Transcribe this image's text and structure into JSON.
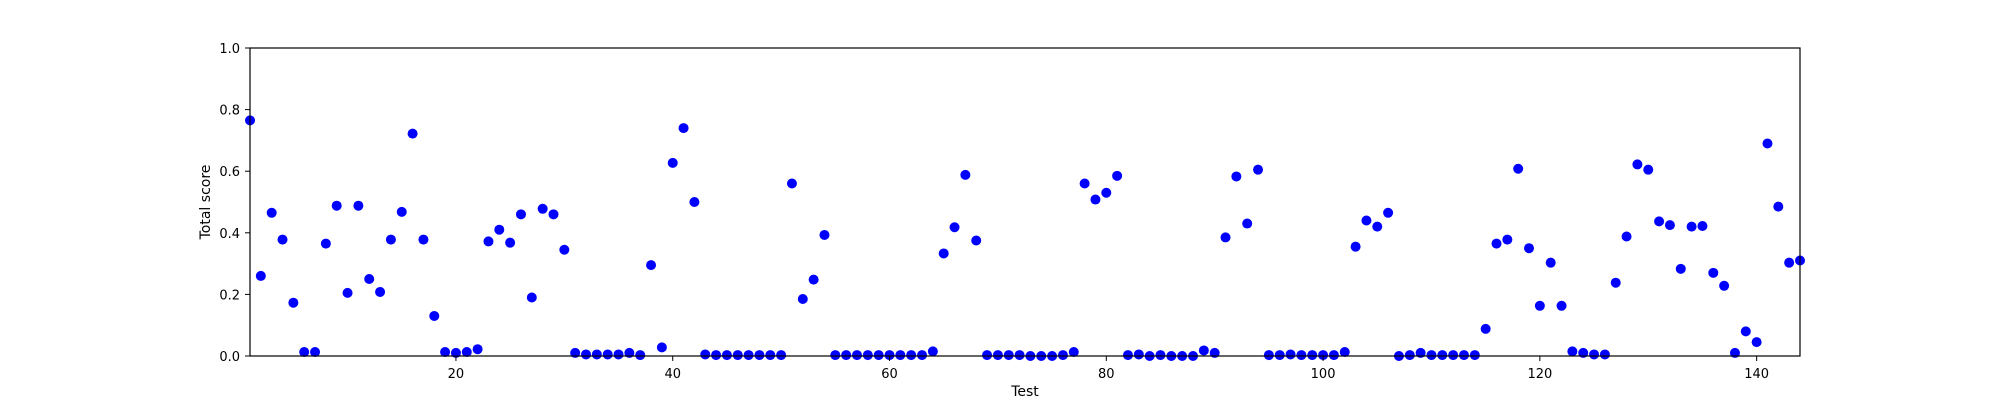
{
  "chart_data": {
    "type": "scatter",
    "title": "",
    "xlabel": "Test",
    "ylabel": "Total score",
    "xlim": [
      1,
      144
    ],
    "ylim": [
      0.0,
      1.0
    ],
    "x_ticks": [
      20,
      40,
      60,
      80,
      100,
      120,
      140
    ],
    "y_ticks": [
      "0.0",
      "0.2",
      "0.4",
      "0.6",
      "0.8",
      "1.0"
    ],
    "grid": false,
    "marker_color": "#0000ff",
    "series": [
      {
        "x": [
          1,
          2,
          3,
          4,
          5,
          6,
          7,
          8,
          9,
          10,
          11,
          12,
          13,
          14,
          15,
          16,
          17,
          18,
          19,
          20,
          21,
          22,
          23,
          24,
          25,
          26,
          27,
          28,
          29,
          30,
          31,
          32,
          33,
          34,
          35,
          36,
          37,
          38,
          39,
          40,
          41,
          42,
          43,
          44,
          45,
          46,
          47,
          48,
          49,
          50,
          51,
          52,
          53,
          54,
          55,
          56,
          57,
          58,
          59,
          60,
          61,
          62,
          63,
          64,
          65,
          66,
          67,
          68,
          69,
          70,
          71,
          72,
          73,
          74,
          75,
          76,
          77,
          78,
          79,
          80,
          81,
          82,
          83,
          84,
          85,
          86,
          87,
          88,
          89,
          90,
          91,
          92,
          93,
          94,
          95,
          96,
          97,
          98,
          99,
          100,
          101,
          102,
          103,
          104,
          105,
          106,
          107,
          108,
          109,
          110,
          111,
          112,
          113,
          114,
          115,
          116,
          117,
          118,
          119,
          120,
          121,
          122,
          123,
          124,
          125,
          126,
          127,
          128,
          129,
          130,
          131,
          132,
          133,
          134,
          135,
          136,
          137,
          138,
          139,
          140,
          141,
          142,
          143,
          144
        ],
        "y": [
          0.765,
          0.26,
          0.465,
          0.378,
          0.173,
          0.013,
          0.013,
          0.365,
          0.488,
          0.205,
          0.488,
          0.25,
          0.208,
          0.378,
          0.468,
          0.722,
          0.378,
          0.13,
          0.013,
          0.01,
          0.013,
          0.022,
          0.372,
          0.41,
          0.368,
          0.46,
          0.19,
          0.478,
          0.46,
          0.345,
          0.01,
          0.005,
          0.005,
          0.005,
          0.005,
          0.01,
          0.003,
          0.295,
          0.028,
          0.627,
          0.74,
          0.5,
          0.005,
          0.003,
          0.003,
          0.003,
          0.003,
          0.003,
          0.003,
          0.003,
          0.56,
          0.185,
          0.248,
          0.393,
          0.003,
          0.003,
          0.003,
          0.003,
          0.003,
          0.003,
          0.003,
          0.003,
          0.003,
          0.015,
          0.333,
          0.418,
          0.588,
          0.375,
          0.003,
          0.003,
          0.003,
          0.003,
          0.0,
          0.0,
          0.0,
          0.003,
          0.013,
          0.56,
          0.508,
          0.53,
          0.585,
          0.003,
          0.005,
          0.0,
          0.003,
          0.0,
          0.0,
          0.0,
          0.018,
          0.01,
          0.385,
          0.583,
          0.43,
          0.605,
          0.003,
          0.003,
          0.005,
          0.003,
          0.003,
          0.003,
          0.003,
          0.013,
          0.355,
          0.44,
          0.42,
          0.465,
          0.0,
          0.003,
          0.01,
          0.003,
          0.003,
          0.003,
          0.003,
          0.003,
          0.088,
          0.365,
          0.378,
          0.608,
          0.35,
          0.163,
          0.303,
          0.163,
          0.015,
          0.01,
          0.005,
          0.005,
          0.238,
          0.388,
          0.622,
          0.605,
          0.437,
          0.425,
          0.283,
          0.42,
          0.422,
          0.27,
          0.228,
          0.01,
          0.08,
          0.045,
          0.69,
          0.485,
          0.303,
          0.31
        ]
      }
    ]
  }
}
